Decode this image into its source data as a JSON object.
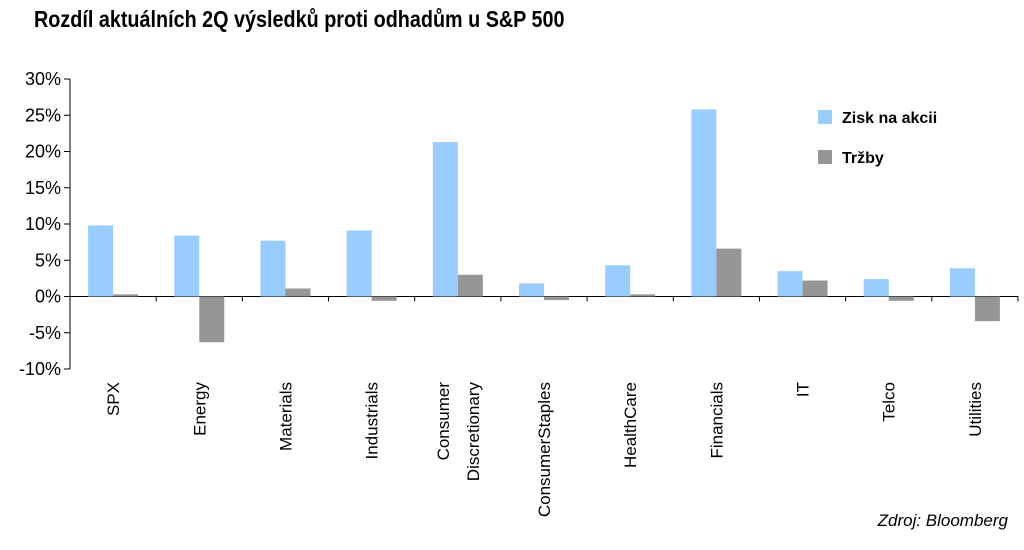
{
  "chart_data": {
    "type": "bar",
    "title": "Rozdíl aktuálních 2Q výsledků proti odhadům u S&P 500",
    "xlabel": "",
    "ylabel": "",
    "ylim": [
      -10,
      30
    ],
    "yticks": [
      "30%",
      "25%",
      "20%",
      "15%",
      "10%",
      "5%",
      "0%",
      "-5%",
      "-10%"
    ],
    "categories": [
      [
        "SPX"
      ],
      [
        "Energy"
      ],
      [
        "Materials"
      ],
      [
        "Industrials"
      ],
      [
        "Consumer",
        "Discretionary"
      ],
      [
        "ConsumerStaples"
      ],
      [
        "HealthCare"
      ],
      [
        "Financials"
      ],
      [
        "IT"
      ],
      [
        "Telco"
      ],
      [
        "Utilities"
      ]
    ],
    "series": [
      {
        "name": "Zisk na akcii",
        "color": "#99ccff",
        "values": [
          9.8,
          8.4,
          7.7,
          9.1,
          21.3,
          1.8,
          4.3,
          25.8,
          3.5,
          2.4,
          3.9
        ]
      },
      {
        "name": "Tržby",
        "color": "#969696",
        "values": [
          0.3,
          -6.3,
          1.1,
          -0.6,
          3.0,
          -0.5,
          0.3,
          6.6,
          2.2,
          -0.6,
          -3.4
        ]
      }
    ],
    "grid": false,
    "legend": "top-right"
  },
  "source": "Zdroj: Bloomberg"
}
